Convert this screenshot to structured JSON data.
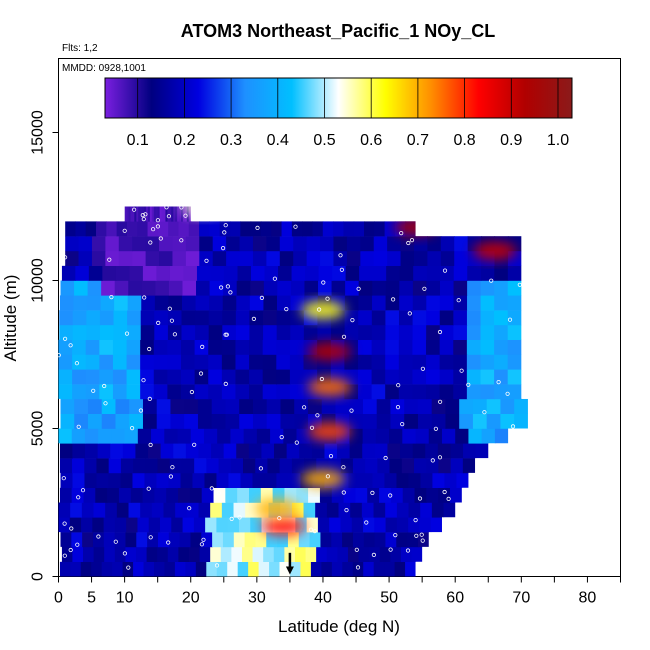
{
  "chart_data": {
    "type": "heatmap",
    "title": "ATOM3 Northeast_Pacific_1 NOy_CL",
    "flights_label": "Flts: 1,2",
    "date_label": "MMDD: 0928,1001",
    "xlabel": "Latitude (deg N)",
    "ylabel": "Altitude (m)",
    "xlim": [
      0,
      85
    ],
    "ylim": [
      0,
      17500
    ],
    "x_ticks": [
      0,
      5,
      10,
      20,
      30,
      40,
      50,
      60,
      70,
      80
    ],
    "x_minor_ticks": [
      15,
      25,
      35,
      45,
      55,
      65,
      75,
      85
    ],
    "y_ticks": [
      0,
      5000,
      10000,
      15000
    ],
    "colorbar": {
      "ticks": [
        "0.1",
        "0.2",
        "0.3",
        "0.4",
        "0.5",
        "0.6",
        "0.7",
        "0.8",
        "0.9",
        "1.0"
      ],
      "range": [
        0.03,
        1.03
      ],
      "colors": [
        "#7a1fe0",
        "#000080",
        "#0000e0",
        "#1e90ff",
        "#00bfff",
        "#ffffff",
        "#ffff00",
        "#ff8c00",
        "#ff0000",
        "#b00000",
        "#8b1a1a"
      ]
    },
    "marker": {
      "latitude": 35,
      "altitude": 800
    },
    "altitude_profile": [
      {
        "alt": 0,
        "lat_min": 0.2,
        "lat_max": 54
      },
      {
        "alt": 500,
        "lat_min": 0.5,
        "lat_max": 55
      },
      {
        "alt": 1000,
        "lat_min": 0.3,
        "lat_max": 56
      },
      {
        "alt": 1500,
        "lat_min": 0,
        "lat_max": 58
      },
      {
        "alt": 2000,
        "lat_min": 0,
        "lat_max": 60
      },
      {
        "alt": 2500,
        "lat_min": 0.2,
        "lat_max": 61
      },
      {
        "alt": 3000,
        "lat_min": 0.3,
        "lat_max": 62
      },
      {
        "alt": 3500,
        "lat_min": 0.2,
        "lat_max": 63
      },
      {
        "alt": 4000,
        "lat_min": 0.2,
        "lat_max": 65
      },
      {
        "alt": 4500,
        "lat_min": 0,
        "lat_max": 68
      },
      {
        "alt": 5000,
        "lat_min": 0.3,
        "lat_max": 71
      },
      {
        "alt": 5500,
        "lat_min": 0.3,
        "lat_max": 71
      },
      {
        "alt": 6000,
        "lat_min": 0,
        "lat_max": 70
      },
      {
        "alt": 6500,
        "lat_min": 0,
        "lat_max": 70
      },
      {
        "alt": 7000,
        "lat_min": 0,
        "lat_max": 70
      },
      {
        "alt": 7500,
        "lat_min": 0,
        "lat_max": 70
      },
      {
        "alt": 8000,
        "lat_min": 0.1,
        "lat_max": 70
      },
      {
        "alt": 8500,
        "lat_min": 0.1,
        "lat_max": 70
      },
      {
        "alt": 9000,
        "lat_min": 0.2,
        "lat_max": 70
      },
      {
        "alt": 9500,
        "lat_min": 0.3,
        "lat_max": 70
      },
      {
        "alt": 10000,
        "lat_min": 0.5,
        "lat_max": 70
      },
      {
        "alt": 10500,
        "lat_min": 1,
        "lat_max": 70
      },
      {
        "alt": 11000,
        "lat_min": 1,
        "lat_max": 70
      },
      {
        "alt": 11500,
        "lat_min": 1,
        "lat_max": 54
      },
      {
        "alt": 12000,
        "lat_min": 10,
        "lat_max": 20
      }
    ],
    "hotspots": [
      {
        "lat": 34,
        "alt": 1700,
        "value": 0.82
      },
      {
        "lat": 33,
        "alt": 2300,
        "value": 0.7
      },
      {
        "lat": 41,
        "alt": 7600,
        "value": 0.92
      },
      {
        "lat": 41,
        "alt": 6400,
        "value": 0.75
      },
      {
        "lat": 41,
        "alt": 4900,
        "value": 0.78
      },
      {
        "lat": 40,
        "alt": 3300,
        "value": 0.7
      },
      {
        "lat": 40,
        "alt": 9000,
        "value": 0.62
      },
      {
        "lat": 54,
        "alt": 11800,
        "value": 0.95
      },
      {
        "lat": 66,
        "alt": 11000,
        "value": 0.9
      },
      {
        "lat": 22,
        "alt": 12500,
        "value": 0.55
      }
    ]
  }
}
